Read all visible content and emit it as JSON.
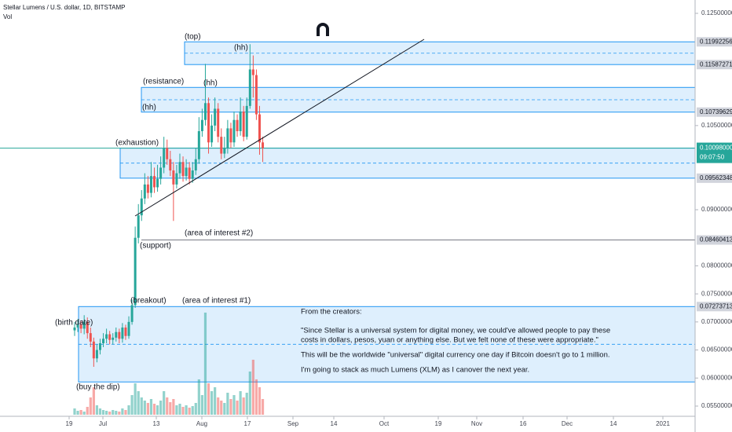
{
  "chart_data": {
    "type": "candlestick",
    "title": "Stellar Lumens / U.S. dollar, 1D, BITSTAMP",
    "volume_label": "Vol",
    "ylim": [
      0.055,
      0.125
    ],
    "yticks": [
      {
        "value": 0.125,
        "label": "0.12500000"
      },
      {
        "value": 0.105,
        "label": "0.10500000"
      },
      {
        "value": 0.09,
        "label": "0.09000000"
      },
      {
        "value": 0.08,
        "label": "0.08000000"
      },
      {
        "value": 0.075,
        "label": "0.07500000"
      },
      {
        "value": 0.07,
        "label": "0.07000000"
      },
      {
        "value": 0.065,
        "label": "0.06500000"
      },
      {
        "value": 0.06,
        "label": "0.06000000"
      },
      {
        "value": 0.055,
        "label": "0.05500000"
      }
    ],
    "level_ticks": [
      {
        "value": 0.11992256,
        "label": "0.11992256"
      },
      {
        "value": 0.11587271,
        "label": "0.11587271"
      },
      {
        "value": 0.10739629,
        "label": "0.10739629"
      },
      {
        "value": 0.09562348,
        "label": "0.09562348"
      },
      {
        "value": 0.08460413,
        "label": "0.08460413"
      },
      {
        "value": 0.07273713,
        "label": "0.07273713"
      }
    ],
    "last_price": {
      "value": 0.10098,
      "label": "0.10098000",
      "countdown": "09:07:50"
    },
    "xticks": [
      "19",
      "Jul",
      "13",
      "Aug",
      "17",
      "Sep",
      "14",
      "Oct",
      "19",
      "Nov",
      "16",
      "Dec",
      "14",
      "2021"
    ],
    "up_color": "#26a69a",
    "down_color": "#ef5350",
    "zone_color": "#2196f3",
    "open": [
      0.0685,
      0.069,
      0.0695,
      0.0688,
      0.07,
      0.068,
      0.0665,
      0.0635,
      0.065,
      0.0662,
      0.067,
      0.0678,
      0.0668,
      0.0672,
      0.0682,
      0.067,
      0.069,
      0.0675,
      0.07,
      0.073,
      0.085,
      0.089,
      0.092,
      0.0945,
      0.093,
      0.096,
      0.094,
      0.0955,
      0.0975,
      0.101,
      0.099,
      0.097,
      0.0945,
      0.0965,
      0.0985,
      0.096,
      0.0975,
      0.0955,
      0.097,
      0.099,
      0.104,
      0.106,
      0.109,
      0.102,
      0.105,
      0.108,
      0.103,
      0.1,
      0.101,
      0.1045,
      0.102,
      0.106,
      0.104,
      0.1075,
      0.103,
      0.1085,
      0.115,
      0.114,
      0.107,
      0.102
    ],
    "high": [
      0.07,
      0.0705,
      0.0702,
      0.0712,
      0.0708,
      0.069,
      0.0672,
      0.066,
      0.067,
      0.068,
      0.0688,
      0.0684,
      0.068,
      0.069,
      0.0688,
      0.0698,
      0.0695,
      0.071,
      0.074,
      0.087,
      0.091,
      0.0935,
      0.0965,
      0.096,
      0.0985,
      0.0975,
      0.098,
      0.0995,
      0.103,
      0.1025,
      0.1005,
      0.0985,
      0.098,
      0.1,
      0.0995,
      0.099,
      0.0985,
      0.0985,
      0.101,
      0.1065,
      0.108,
      0.116,
      0.11,
      0.107,
      0.11,
      0.109,
      0.1045,
      0.103,
      0.106,
      0.1055,
      0.1075,
      0.107,
      0.11,
      0.1085,
      0.11,
      0.1195,
      0.1175,
      0.115,
      0.1085,
      0.103
    ],
    "low": [
      0.0675,
      0.0682,
      0.068,
      0.0678,
      0.067,
      0.0655,
      0.062,
      0.0628,
      0.0642,
      0.0655,
      0.0662,
      0.066,
      0.066,
      0.0665,
      0.0662,
      0.0663,
      0.0668,
      0.067,
      0.0695,
      0.0725,
      0.084,
      0.088,
      0.091,
      0.092,
      0.0922,
      0.093,
      0.0932,
      0.0945,
      0.0965,
      0.098,
      0.096,
      0.088,
      0.0938,
      0.0955,
      0.095,
      0.0952,
      0.0945,
      0.0948,
      0.0962,
      0.0982,
      0.103,
      0.105,
      0.1,
      0.1012,
      0.104,
      0.102,
      0.099,
      0.0992,
      0.1,
      0.101,
      0.1012,
      0.103,
      0.1032,
      0.1022,
      0.1025,
      0.108,
      0.11,
      0.106,
      0.0998,
      0.0985
    ],
    "close": [
      0.069,
      0.0695,
      0.0688,
      0.07,
      0.068,
      0.0665,
      0.0635,
      0.065,
      0.0662,
      0.067,
      0.0678,
      0.0668,
      0.0672,
      0.0682,
      0.067,
      0.069,
      0.0675,
      0.07,
      0.073,
      0.085,
      0.089,
      0.092,
      0.0945,
      0.093,
      0.096,
      0.094,
      0.0955,
      0.0975,
      0.101,
      0.099,
      0.097,
      0.0945,
      0.0965,
      0.0985,
      0.096,
      0.0975,
      0.0955,
      0.097,
      0.099,
      0.104,
      0.106,
      0.109,
      0.102,
      0.105,
      0.108,
      0.103,
      0.1,
      0.101,
      0.1045,
      0.102,
      0.106,
      0.104,
      0.1075,
      0.103,
      0.1085,
      0.115,
      0.114,
      0.107,
      0.102,
      0.10098
    ],
    "volume": [
      8,
      5,
      6,
      4,
      10,
      22,
      35,
      12,
      8,
      6,
      5,
      4,
      6,
      5,
      4,
      8,
      6,
      12,
      25,
      40,
      30,
      22,
      18,
      15,
      20,
      14,
      12,
      18,
      30,
      22,
      16,
      20,
      12,
      14,
      10,
      12,
      9,
      11,
      15,
      45,
      25,
      130,
      40,
      30,
      35,
      22,
      18,
      15,
      28,
      20,
      25,
      18,
      30,
      22,
      28,
      55,
      70,
      45,
      35,
      20
    ],
    "zones": [
      {
        "low": 0.11587271,
        "high": 0.11992256
      },
      {
        "low": 0.10739629,
        "high": 0.1118
      },
      {
        "low": 0.09562348,
        "high": 0.10098
      },
      {
        "low": 0.0593,
        "high": 0.07273713
      }
    ],
    "support_level": 0.08460413,
    "annotations": [
      "(top)",
      "(hh)",
      "(resistance)",
      "(hh)",
      "(hh)",
      "(exhaustion)",
      "(area of interest #2)",
      "(support)",
      "(breakout)",
      "(area of interest #1)",
      "(birth date)",
      "(buy the dip)"
    ],
    "note": [
      "From the creators:",
      "\"Since Stellar is a universal system for digital money, we could've allowed people to pay these",
      "costs in dollars, pesos, yuan or anything else. But we felt none of these were appropriate.\"",
      "This will be the worldwide \"universal\" digital currency one day if Bitcoin doesn't go to 1 million.",
      "I'm going to stack as much Lumens (XLM) as I canover the next year."
    ]
  }
}
